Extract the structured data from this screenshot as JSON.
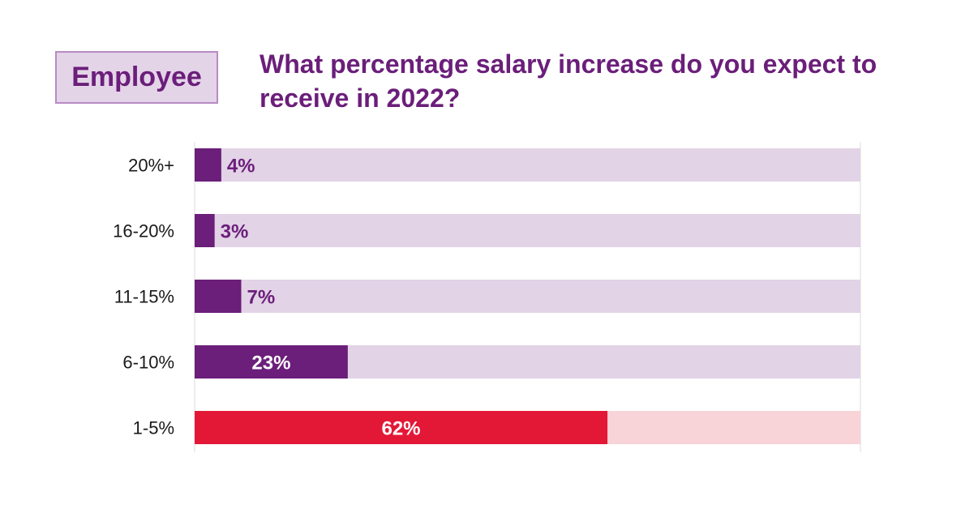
{
  "badge": "Employee",
  "title": "What percentage salary increase do you expect to receive in 2022?",
  "colors": {
    "purple": "#6b1e7a",
    "purple_track": "#e2d3e6",
    "red": "#e31837",
    "red_track": "#f8d3d8",
    "badge_bg": "#e4d4e8",
    "badge_border": "#b88bc4"
  },
  "chart_data": {
    "type": "bar",
    "orientation": "horizontal",
    "categories": [
      "20%+",
      "16-20%",
      "11-15%",
      "6-10%",
      "1-5%"
    ],
    "values": [
      4,
      3,
      7,
      23,
      62
    ],
    "value_labels": [
      "4%",
      "3%",
      "7%",
      "23%",
      "62%"
    ],
    "highlight_category": "1-5%",
    "xlim": [
      0,
      100
    ],
    "grid": false,
    "legend": "none"
  }
}
